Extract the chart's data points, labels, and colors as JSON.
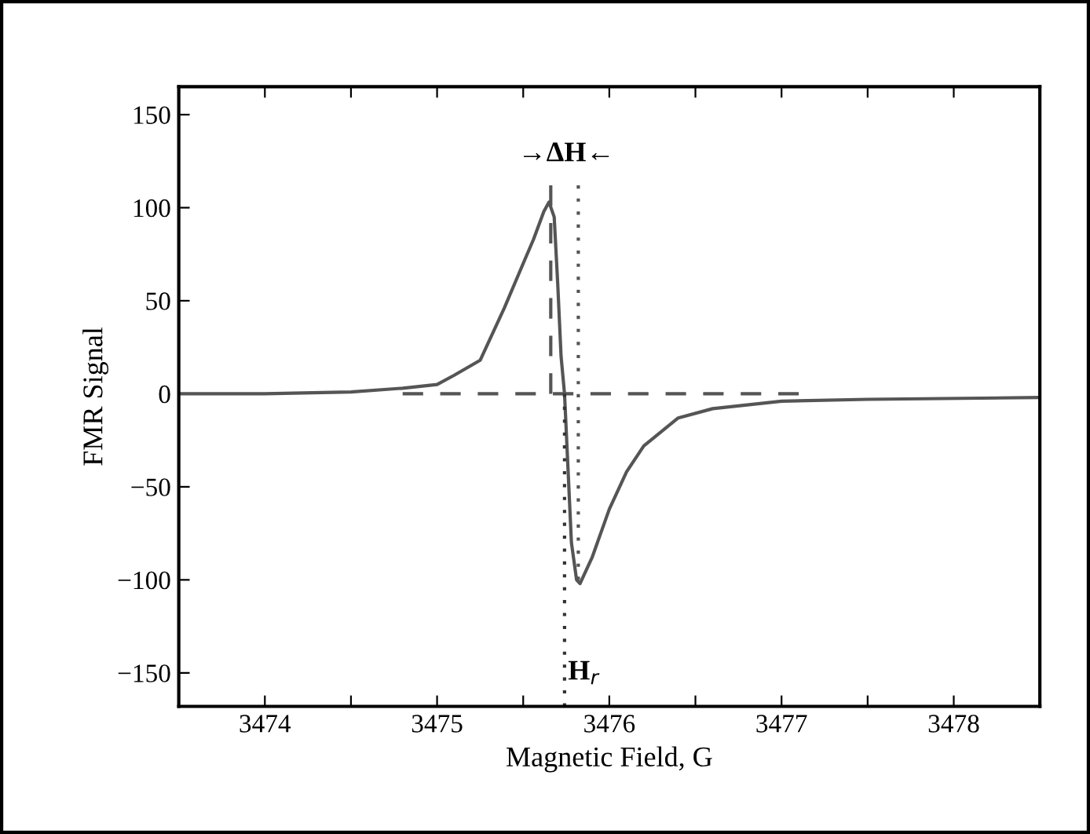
{
  "chart_data": {
    "type": "line",
    "xlabel": "Magnetic Field, G",
    "ylabel": "FMR Signal",
    "xlim": [
      3473.5,
      3478.5
    ],
    "xticks": [
      3474,
      {
        "value": 3474.5,
        "label": null
      },
      3475,
      {
        "value": 3475.5,
        "label": null
      },
      3476,
      {
        "value": 3476.5,
        "label": null
      },
      3477,
      {
        "value": 3477.5,
        "label": null
      },
      3478
    ],
    "ylim": [
      -168,
      165
    ],
    "yticks": [
      -150,
      -100,
      -50,
      0,
      50,
      100,
      150
    ],
    "grid": false,
    "legend": false,
    "series": [
      {
        "color": "#555555",
        "line_style": "solid",
        "x": [
          3473.5,
          3474.0,
          3474.5,
          3474.8,
          3475.0,
          3475.1,
          3475.25,
          3475.39,
          3475.5,
          3475.56,
          3475.62,
          3475.65,
          3475.68,
          3475.7,
          3475.72,
          3475.74,
          3475.76,
          3475.78,
          3475.81,
          3475.83,
          3475.9,
          3476.0,
          3476.1,
          3476.2,
          3476.4,
          3476.6,
          3477.0,
          3477.5,
          3478.5
        ],
        "values": [
          0,
          0,
          1,
          3,
          5,
          10,
          18,
          46,
          70,
          83,
          98,
          103,
          95,
          60,
          20,
          0,
          -40,
          -80,
          -100,
          -102,
          -88,
          -62,
          -42,
          -28,
          -13,
          -8,
          -4,
          -3,
          -2
        ]
      },
      {
        "color": "#555555",
        "line_style": "dashed",
        "x": [
          3474.8,
          3477.1
        ],
        "values": [
          0,
          0
        ]
      },
      {
        "color": "#555555",
        "line_style": "dashed",
        "x": [
          3475.66,
          3475.66
        ],
        "values": [
          0,
          112
        ]
      },
      {
        "color": "#555555",
        "line_style": "dotted",
        "x": [
          3475.82,
          3475.82
        ],
        "values": [
          112,
          -100
        ]
      },
      {
        "color": "#333333",
        "line_style": "dotted",
        "x": [
          3475.74,
          3475.74
        ],
        "values": [
          0,
          -168
        ]
      }
    ],
    "annotations": [
      "→ΔH←",
      {
        "text": "H$_{r}$",
        "x": 3475.76,
        "y": -150
      }
    ]
  }
}
